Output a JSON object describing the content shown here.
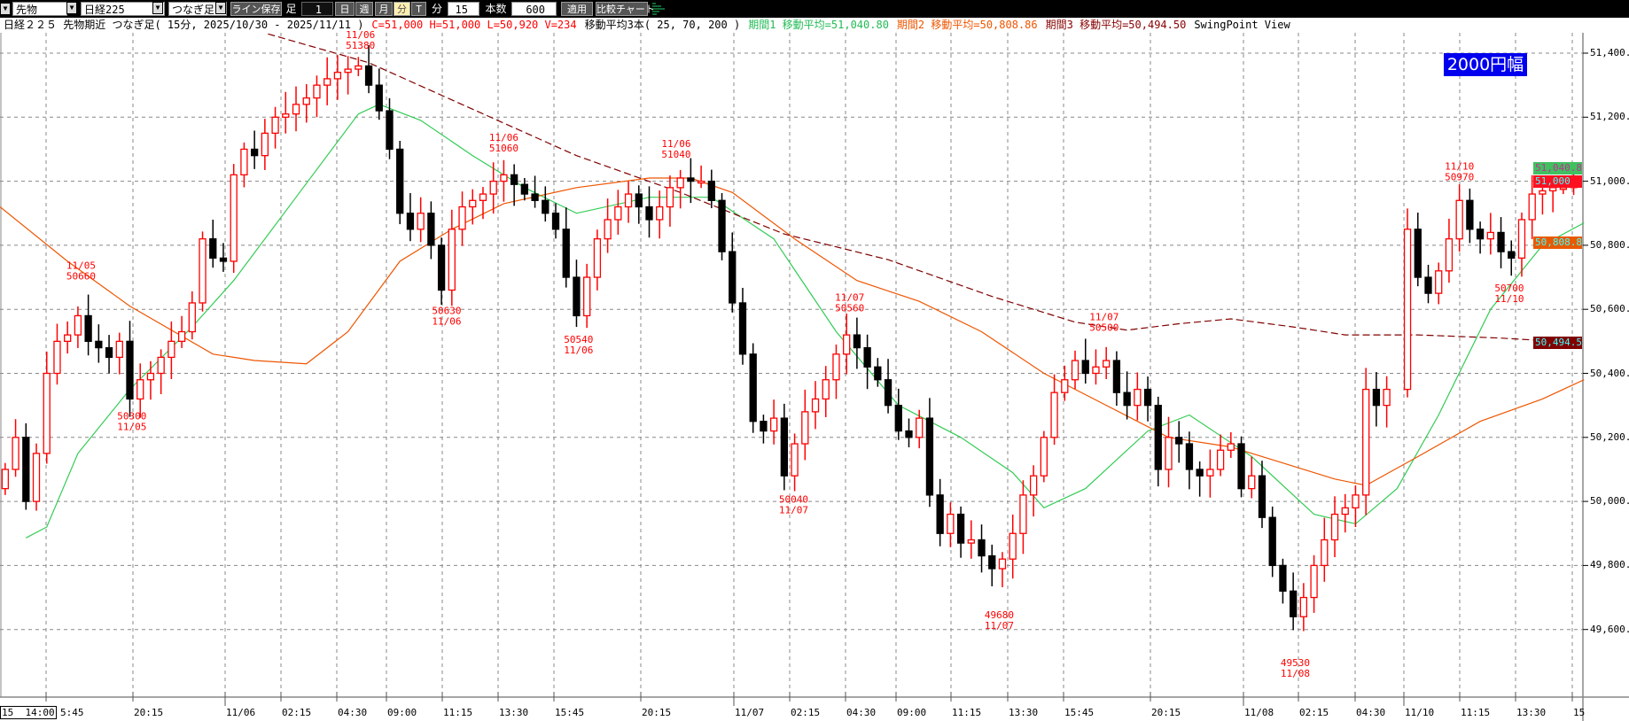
{
  "toolbar": {
    "market": "先物",
    "symbol": "日経225",
    "type": "つなぎ足",
    "save_line": "ライン保存",
    "ashi_label": "足",
    "ashi_value": "1",
    "day": "日",
    "week": "週",
    "month": "月",
    "minute": "分",
    "tick": "T",
    "minute_label": "分",
    "minute_value": "15",
    "count_label": "本数",
    "count_value": "600",
    "apply": "適用",
    "compare": "比較チャート"
  },
  "info": {
    "title": "日経２２５ 先物期近 つなぎ足( 15分, 2025/10/30 - 2025/11/11 )",
    "ohlcv": "C=51,000 H=51,000 L=50,920 V=234",
    "ma_desc": "移動平均3本( 25, 70, 200 )",
    "ma1": "期間1 移動平均=51,040.80",
    "ma2": "期間2 移動平均=50,808.86",
    "ma3": "期間3 移動平均=50,494.50",
    "view": "SwingPoint View"
  },
  "badge": "2000円幅",
  "colors": {
    "up": "#ff0000",
    "down": "#000000",
    "ma1": "#33cc55",
    "ma2": "#ee5500",
    "ma3": "#800000",
    "grid": "#888888",
    "badge": "#0000ee"
  },
  "price_tags": {
    "ma1": "51,040.80",
    "close": "51,000",
    "ma2": "50,808.86",
    "ma3": "50,494.50"
  },
  "time_box": "15  14:00",
  "chart_data": {
    "type": "candlestick",
    "title": "日経２２５ 先物期近 つなぎ足 15分",
    "ylim": [
      49450,
      51470
    ],
    "yticks": [
      "51,400.00",
      "51,200.00",
      "51,000.00",
      "50,800.00",
      "50,600.00",
      "50,400.00",
      "50,200.00",
      "50,000.00",
      "49,800.00",
      "49,600.00"
    ],
    "ytick_values": [
      51400,
      51200,
      51000,
      50800,
      50600,
      50400,
      50200,
      50000,
      49800,
      49600
    ],
    "xticks": [
      "5:45",
      "20:15",
      "11/06",
      "02:15",
      "04:30",
      "09:00",
      "11:15",
      "13:30",
      "15:45",
      "20:15",
      "11/07",
      "02:15",
      "04:30",
      "09:00",
      "11:15",
      "13:30",
      "15:45",
      "20:15",
      "11/08",
      "02:15",
      "04:30",
      "11/10",
      "11:15",
      "13:30",
      "15"
    ],
    "closes": [
      50100,
      50200,
      50000,
      50150,
      50400,
      50500,
      50520,
      50580,
      50500,
      50480,
      50450,
      50500,
      50320,
      50380,
      50400,
      50450,
      50500,
      50530,
      50620,
      50820,
      50760,
      50750,
      51020,
      51100,
      51080,
      51150,
      51200,
      51210,
      51240,
      51260,
      51300,
      51320,
      51340,
      51350,
      51360,
      51300,
      51220,
      51100,
      50900,
      50850,
      50900,
      50800,
      50660,
      50850,
      50920,
      50940,
      50960,
      51000,
      51020,
      50990,
      50960,
      50940,
      50900,
      50850,
      50700,
      50580,
      50700,
      50820,
      50880,
      50920,
      50960,
      50920,
      50880,
      50920,
      50980,
      51010,
      51000,
      51000,
      50940,
      50780,
      50620,
      50460,
      50250,
      50220,
      50260,
      50080,
      50180,
      50280,
      50320,
      50380,
      50460,
      50520,
      50480,
      50420,
      50380,
      50300,
      50220,
      50200,
      50260,
      50020,
      49900,
      49960,
      49870,
      49880,
      49830,
      49790,
      49820,
      49900,
      50020,
      50080,
      50200,
      50340,
      50380,
      50440,
      50400,
      50420,
      50440,
      50340,
      50300,
      50350,
      50300,
      50100,
      50200,
      50180,
      50100,
      50080,
      50100,
      50160,
      50180,
      50040,
      50080,
      49950,
      49800,
      49720,
      49640,
      49700,
      49800,
      49880,
      49960,
      49980,
      50020,
      50350,
      50300,
      50350,
      null,
      50850,
      50700,
      50650,
      50720,
      50820,
      50940,
      50850,
      50820,
      50840,
      50780,
      50760,
      50880,
      50960,
      50970,
      50980,
      50980,
      51000
    ],
    "ma_series": [
      {
        "name": "期間1 (25)",
        "color": "#33cc55",
        "points": [
          [
            2,
            49886
          ],
          [
            4,
            49920
          ],
          [
            7,
            50150
          ],
          [
            12,
            50350
          ],
          [
            18,
            50545
          ],
          [
            22,
            50690
          ],
          [
            28,
            50950
          ],
          [
            34,
            51210
          ],
          [
            36,
            51240
          ],
          [
            40,
            51190
          ],
          [
            45,
            51080
          ],
          [
            50,
            50980
          ],
          [
            55,
            50900
          ],
          [
            62,
            50950
          ],
          [
            68,
            50950
          ],
          [
            74,
            50820
          ],
          [
            80,
            50530
          ],
          [
            86,
            50300
          ],
          [
            92,
            50200
          ],
          [
            97,
            50090
          ],
          [
            100,
            49980
          ],
          [
            104,
            50040
          ],
          [
            110,
            50220
          ],
          [
            114,
            50270
          ],
          [
            120,
            50140
          ],
          [
            126,
            49960
          ],
          [
            130,
            49930
          ],
          [
            134,
            50040
          ],
          [
            138,
            50270
          ],
          [
            143,
            50600
          ],
          [
            148,
            50800
          ],
          [
            152,
            50870
          ]
        ]
      },
      {
        "name": "期間2 (70)",
        "color": "#ee5500",
        "points": [
          [
            -0.5,
            50920
          ],
          [
            6,
            50750
          ],
          [
            12,
            50610
          ],
          [
            20,
            50460
          ],
          [
            24,
            50440
          ],
          [
            29,
            50430
          ],
          [
            33,
            50530
          ],
          [
            38,
            50750
          ],
          [
            43,
            50850
          ],
          [
            48,
            50930
          ],
          [
            55,
            50980
          ],
          [
            62,
            51010
          ],
          [
            66,
            51010
          ],
          [
            70,
            50965
          ],
          [
            76,
            50820
          ],
          [
            82,
            50690
          ],
          [
            88,
            50625
          ],
          [
            94,
            50530
          ],
          [
            100,
            50400
          ],
          [
            106,
            50300
          ],
          [
            112,
            50200
          ],
          [
            118,
            50170
          ],
          [
            123,
            50120
          ],
          [
            128,
            50070
          ],
          [
            131,
            50050
          ],
          [
            136,
            50140
          ],
          [
            142,
            50250
          ],
          [
            148,
            50320
          ],
          [
            152,
            50380
          ]
        ]
      },
      {
        "name": "期間3 (200)",
        "color": "#800000",
        "points": [
          [
            25.3,
            51460
          ],
          [
            35,
            51370
          ],
          [
            45,
            51225
          ],
          [
            55,
            51080
          ],
          [
            65,
            50965
          ],
          [
            75,
            50835
          ],
          [
            85,
            50755
          ],
          [
            95,
            50640
          ],
          [
            103,
            50560
          ],
          [
            108,
            50535
          ],
          [
            113,
            50555
          ],
          [
            118,
            50570
          ],
          [
            124,
            50545
          ],
          [
            129,
            50520
          ],
          [
            136,
            50520
          ],
          [
            144,
            50510
          ],
          [
            152,
            50495
          ]
        ]
      }
    ],
    "swing_points": [
      {
        "idx": 7.3,
        "date": "11/05",
        "price": "50660",
        "value": 50660,
        "pos": "high"
      },
      {
        "idx": 12.2,
        "date": "11/05",
        "price": "50300",
        "value": 50300,
        "pos": "low"
      },
      {
        "idx": 34.2,
        "date": "11/06",
        "price": "51380",
        "value": 51380,
        "pos": "high"
      },
      {
        "idx": 42.5,
        "date": "11/06",
        "price": "50630",
        "value": 50630,
        "pos": "low"
      },
      {
        "idx": 48,
        "date": "11/06",
        "price": "51060",
        "value": 51060,
        "pos": "high"
      },
      {
        "idx": 55.2,
        "date": "11/06",
        "price": "50540",
        "value": 50540,
        "pos": "low"
      },
      {
        "idx": 64.6,
        "date": "11/06",
        "price": "51040",
        "value": 51040,
        "pos": "high"
      },
      {
        "idx": 75.9,
        "date": "11/07",
        "price": "50040",
        "value": 50040,
        "pos": "low"
      },
      {
        "idx": 81.3,
        "date": "11/07",
        "price": "50560",
        "value": 50560,
        "pos": "high"
      },
      {
        "idx": 95.7,
        "date": "11/07",
        "price": "49680",
        "value": 49680,
        "pos": "low"
      },
      {
        "idx": 105.8,
        "date": "11/07",
        "price": "50500",
        "value": 50500,
        "pos": "high"
      },
      {
        "idx": 124.2,
        "date": "11/08",
        "price": "49530",
        "value": 49530,
        "pos": "low"
      },
      {
        "idx": 140,
        "date": "11/10",
        "price": "50970",
        "value": 50970,
        "pos": "high"
      },
      {
        "idx": 144.8,
        "date": "11/10",
        "price": "50700",
        "value": 50700,
        "pos": "low"
      }
    ]
  }
}
